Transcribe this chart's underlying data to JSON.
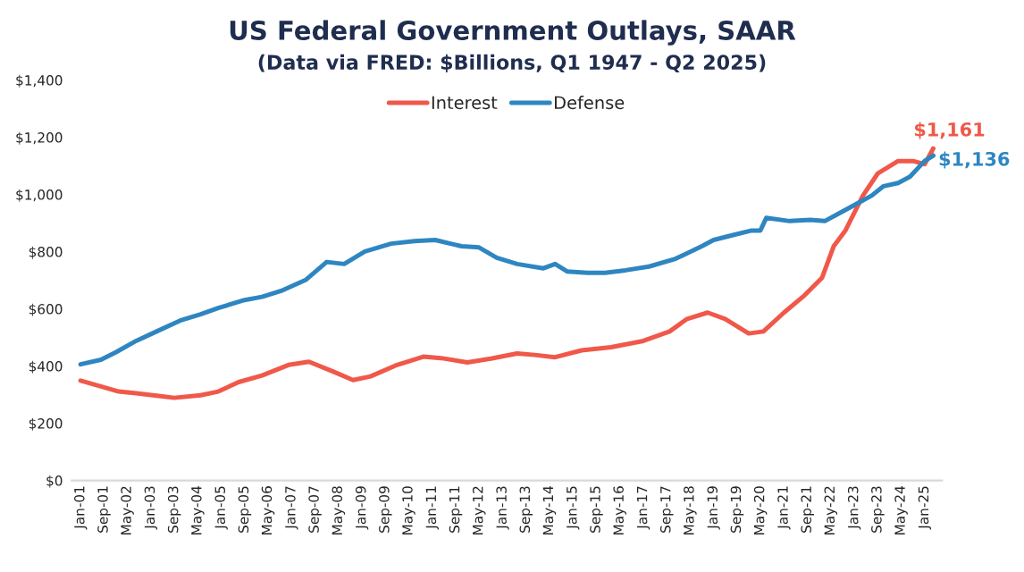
{
  "chart_data": {
    "type": "line",
    "title": "US Federal Government Outlays, SAAR",
    "subtitle": "(Data via FRED: $Billions, Q1 1947 - Q2 2025)",
    "ylim": [
      0,
      1400
    ],
    "yticks": [
      {
        "value": 0,
        "label": "$0"
      },
      {
        "value": 200,
        "label": "$200"
      },
      {
        "value": 400,
        "label": "$400"
      },
      {
        "value": 600,
        "label": "$600"
      },
      {
        "value": 800,
        "label": "$800"
      },
      {
        "value": 1000,
        "label": "$1,000"
      },
      {
        "value": 1200,
        "label": "$1,200"
      },
      {
        "value": 1400,
        "label": "$1,400"
      }
    ],
    "xlim": [
      "2000-10",
      "2025-07"
    ],
    "xticks": [
      {
        "value": "2001-01",
        "label": "Jan-01"
      },
      {
        "value": "2001-09",
        "label": "Sep-01"
      },
      {
        "value": "2002-05",
        "label": "May-02"
      },
      {
        "value": "2003-01",
        "label": "Jan-03"
      },
      {
        "value": "2003-09",
        "label": "Sep-03"
      },
      {
        "value": "2004-05",
        "label": "May-04"
      },
      {
        "value": "2005-01",
        "label": "Jan-05"
      },
      {
        "value": "2005-09",
        "label": "Sep-05"
      },
      {
        "value": "2006-05",
        "label": "May-06"
      },
      {
        "value": "2007-01",
        "label": "Jan-07"
      },
      {
        "value": "2007-09",
        "label": "Sep-07"
      },
      {
        "value": "2008-05",
        "label": "May-08"
      },
      {
        "value": "2009-01",
        "label": "Jan-09"
      },
      {
        "value": "2009-09",
        "label": "Sep-09"
      },
      {
        "value": "2010-05",
        "label": "May-10"
      },
      {
        "value": "2011-01",
        "label": "Jan-11"
      },
      {
        "value": "2011-09",
        "label": "Sep-11"
      },
      {
        "value": "2012-05",
        "label": "May-12"
      },
      {
        "value": "2013-01",
        "label": "Jan-13"
      },
      {
        "value": "2013-09",
        "label": "Sep-13"
      },
      {
        "value": "2014-05",
        "label": "May-14"
      },
      {
        "value": "2015-01",
        "label": "Jan-15"
      },
      {
        "value": "2015-09",
        "label": "Sep-15"
      },
      {
        "value": "2016-05",
        "label": "May-16"
      },
      {
        "value": "2017-01",
        "label": "Jan-17"
      },
      {
        "value": "2017-09",
        "label": "Sep-17"
      },
      {
        "value": "2018-05",
        "label": "May-18"
      },
      {
        "value": "2019-01",
        "label": "Jan-19"
      },
      {
        "value": "2019-09",
        "label": "Sep-19"
      },
      {
        "value": "2020-05",
        "label": "May-20"
      },
      {
        "value": "2021-01",
        "label": "Jan-21"
      },
      {
        "value": "2021-09",
        "label": "Sep-21"
      },
      {
        "value": "2022-05",
        "label": "May-22"
      },
      {
        "value": "2023-01",
        "label": "Jan-23"
      },
      {
        "value": "2023-09",
        "label": "Sep-23"
      },
      {
        "value": "2024-05",
        "label": "May-24"
      },
      {
        "value": "2025-01",
        "label": "Jan-25"
      }
    ],
    "grid": false,
    "legend": "top",
    "marker": "none",
    "line_style": "solid",
    "series": [
      {
        "name": "Interest",
        "color": "#f0584a",
        "x": [
          "2001-01",
          "2001-08",
          "2002-02",
          "2002-08",
          "2003-05",
          "2003-09",
          "2004-06",
          "2004-12",
          "2005-07",
          "2006-03",
          "2006-12",
          "2007-07",
          "2008-03",
          "2008-10",
          "2009-04",
          "2010-01",
          "2010-10",
          "2011-04",
          "2012-01",
          "2012-09",
          "2013-06",
          "2013-12",
          "2014-07",
          "2015-04",
          "2016-02",
          "2017-01",
          "2017-10",
          "2018-04",
          "2018-11",
          "2019-05",
          "2020-01",
          "2020-06",
          "2021-01",
          "2021-08",
          "2022-02",
          "2022-06",
          "2022-10",
          "2023-04",
          "2023-09",
          "2024-04",
          "2024-09",
          "2025-01",
          "2025-04"
        ],
        "values": [
          349,
          329,
          311,
          305,
          294,
          289,
          298,
          311,
          344,
          367,
          404,
          415,
          382,
          351,
          364,
          404,
          433,
          428,
          413,
          426,
          444,
          439,
          431,
          455,
          466,
          488,
          521,
          565,
          587,
          565,
          514,
          521,
          587,
          647,
          709,
          819,
          874,
          996,
          1073,
          1117,
          1117,
          1106,
          1161
        ],
        "value_labels": [
          null,
          null,
          null,
          null,
          null,
          null,
          null,
          null,
          null,
          null,
          null,
          null,
          null,
          null,
          null,
          null,
          null,
          null,
          null,
          null,
          null,
          null,
          null,
          null,
          null,
          null,
          null,
          null,
          null,
          null,
          null,
          null,
          null,
          null,
          null,
          null,
          null,
          null,
          null,
          null,
          null,
          null,
          "$1,161"
        ]
      },
      {
        "name": "Defense",
        "color": "#2e86c1",
        "x": [
          "2001-01",
          "2001-08",
          "2002-01",
          "2002-08",
          "2003-03",
          "2003-11",
          "2004-06",
          "2004-12",
          "2005-09",
          "2006-03",
          "2006-10",
          "2007-06",
          "2008-01",
          "2008-07",
          "2009-02",
          "2009-11",
          "2010-07",
          "2011-02",
          "2011-11",
          "2012-05",
          "2012-11",
          "2013-06",
          "2014-03",
          "2014-07",
          "2014-11",
          "2015-06",
          "2015-12",
          "2016-07",
          "2017-03",
          "2017-12",
          "2018-09",
          "2019-01",
          "2019-08",
          "2020-02",
          "2020-05",
          "2020-07",
          "2021-03",
          "2021-10",
          "2022-03",
          "2022-07",
          "2023-01",
          "2023-07",
          "2023-11",
          "2024-04",
          "2024-08",
          "2025-01",
          "2025-04"
        ],
        "values": [
          406,
          422,
          448,
          488,
          521,
          559,
          581,
          603,
          631,
          642,
          665,
          702,
          764,
          757,
          801,
          828,
          837,
          841,
          819,
          815,
          779,
          757,
          742,
          757,
          731,
          726,
          726,
          735,
          748,
          775,
          819,
          841,
          859,
          874,
          874,
          918,
          907,
          911,
          907,
          929,
          963,
          996,
          1029,
          1040,
          1062,
          1117,
          1136
        ],
        "value_labels": [
          null,
          null,
          null,
          null,
          null,
          null,
          null,
          null,
          null,
          null,
          null,
          null,
          null,
          null,
          null,
          null,
          null,
          null,
          null,
          null,
          null,
          null,
          null,
          null,
          null,
          null,
          null,
          null,
          null,
          null,
          null,
          null,
          null,
          null,
          null,
          null,
          null,
          null,
          null,
          null,
          null,
          null,
          null,
          null,
          null,
          null,
          "$1,136"
        ]
      }
    ]
  }
}
